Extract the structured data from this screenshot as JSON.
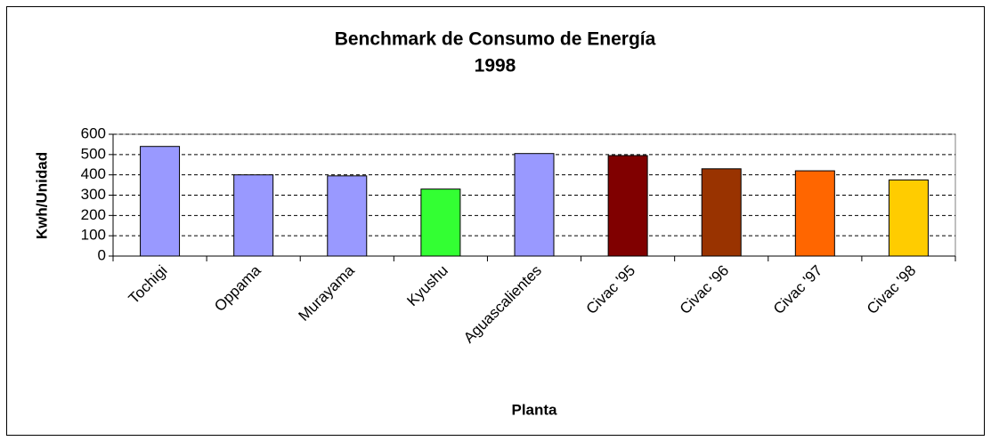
{
  "chart_data": {
    "type": "bar",
    "title": "Benchmark de Consumo de Energía",
    "subtitle": "1998",
    "x_label": "Planta",
    "y_label": "Kwh/Unidad",
    "categories": [
      "Tochigi",
      "Oppama",
      "Murayama",
      "Kyushu",
      "Aguascalientes",
      "Civac '95",
      "Civac '96",
      "Civac '97",
      "Civac '98"
    ],
    "values": [
      540,
      400,
      395,
      330,
      505,
      495,
      430,
      420,
      375
    ],
    "colors": [
      "#9999ff",
      "#9999ff",
      "#9999ff",
      "#33ff33",
      "#9999ff",
      "#800000",
      "#993300",
      "#ff6600",
      "#ffcc00"
    ],
    "ylim": [
      0,
      600
    ],
    "yticks": [
      0,
      100,
      200,
      300,
      400,
      500,
      600
    ],
    "grid": true
  }
}
